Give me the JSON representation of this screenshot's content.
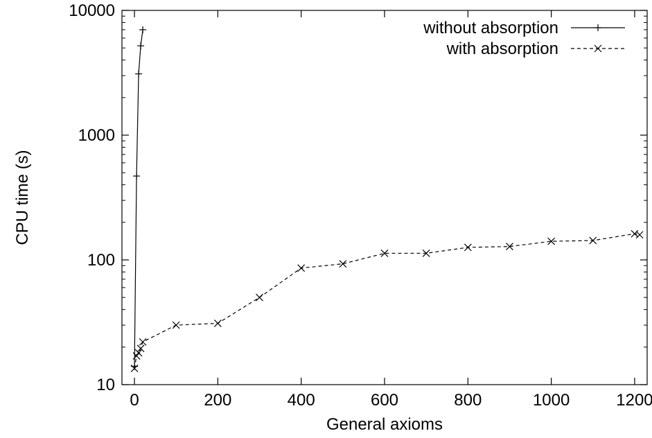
{
  "chart_data": {
    "type": "line",
    "xlabel": "General axioms",
    "ylabel": "CPU time (s)",
    "xlim": [
      -30,
      1230
    ],
    "ylim": [
      10,
      10000
    ],
    "yscale": "log",
    "x_ticks": [
      0,
      200,
      400,
      600,
      800,
      1000,
      1200
    ],
    "y_ticks": [
      10,
      100,
      1000,
      10000
    ],
    "grid": false,
    "legend_position": "top-right",
    "series": [
      {
        "name": "without absorption",
        "line_style": "solid",
        "marker": "plus",
        "color": "#000000",
        "points": [
          {
            "x": 0,
            "y": 14
          },
          {
            "x": 5,
            "y": 470
          },
          {
            "x": 10,
            "y": 3100
          },
          {
            "x": 15,
            "y": 5200
          },
          {
            "x": 20,
            "y": 7000
          }
        ]
      },
      {
        "name": "with absorption",
        "line_style": "dashed",
        "marker": "cross",
        "color": "#000000",
        "points": [
          {
            "x": 0,
            "y": 13.5
          },
          {
            "x": 5,
            "y": 17
          },
          {
            "x": 10,
            "y": 18
          },
          {
            "x": 15,
            "y": 19.5
          },
          {
            "x": 20,
            "y": 22
          },
          {
            "x": 100,
            "y": 30
          },
          {
            "x": 200,
            "y": 31
          },
          {
            "x": 300,
            "y": 50
          },
          {
            "x": 400,
            "y": 86
          },
          {
            "x": 500,
            "y": 93
          },
          {
            "x": 600,
            "y": 113
          },
          {
            "x": 700,
            "y": 113
          },
          {
            "x": 800,
            "y": 126
          },
          {
            "x": 900,
            "y": 128
          },
          {
            "x": 1000,
            "y": 141
          },
          {
            "x": 1100,
            "y": 143
          },
          {
            "x": 1200,
            "y": 162
          },
          {
            "x": 1212,
            "y": 159
          }
        ]
      }
    ]
  }
}
